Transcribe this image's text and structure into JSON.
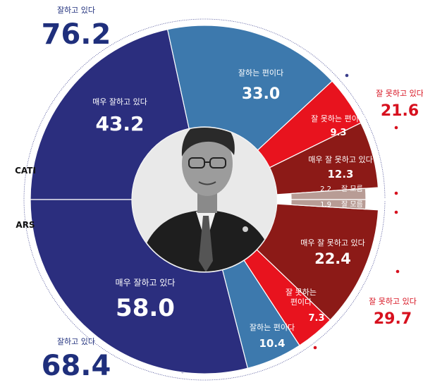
{
  "colors": {
    "strong_positive": "#2b2e7e",
    "positive": "#3d79ad",
    "negative": "#e8131e",
    "strong_negative": "#8c1a17",
    "unknown": "#b89c95",
    "guide": "#3a3e8c",
    "guide_dot_red": "#d7101e"
  },
  "portrait": {
    "icon": "person-portrait-icon"
  },
  "chart_data": {
    "type": "pie",
    "subtype": "donut-split",
    "groups": [
      {
        "name": "CATI",
        "half": "top",
        "positive_total": {
          "label": "잘하고 있다",
          "value": "76.2"
        },
        "negative_total": {
          "label": "잘 못하고 있다",
          "value": "21.6"
        },
        "segments": [
          {
            "label": "매우 잘하고 있다",
            "value": 43.2,
            "value_text": "43.2",
            "color_key": "strong_positive"
          },
          {
            "label": "잘하는 편이다",
            "value": 33.0,
            "value_text": "33.0",
            "color_key": "positive"
          },
          {
            "label": "잘 못하는 편이다",
            "value": 9.3,
            "value_text": "9.3",
            "color_key": "negative"
          },
          {
            "label": "매우 잘 못하고 있다",
            "value": 12.3,
            "value_text": "12.3",
            "color_key": "strong_negative"
          },
          {
            "label": "잘 모름",
            "value": 2.2,
            "value_text": "2.2",
            "color_key": "unknown"
          }
        ]
      },
      {
        "name": "ARS",
        "half": "bottom",
        "positive_total": {
          "label": "잘하고 있다",
          "value": "68.4"
        },
        "negative_total": {
          "label": "잘 못하고 있다",
          "value": "29.7"
        },
        "segments": [
          {
            "label": "매우 잘하고 있다",
            "value": 58.0,
            "value_text": "58.0",
            "color_key": "strong_positive"
          },
          {
            "label": "잘하는 편이다",
            "value": 10.4,
            "value_text": "10.4",
            "color_key": "positive"
          },
          {
            "label": "잘 못하는 편이다",
            "value": 7.3,
            "value_text": "7.3",
            "color_key": "negative"
          },
          {
            "label": "매우 잘 못하고 있다",
            "value": 22.4,
            "value_text": "22.4",
            "color_key": "strong_negative"
          },
          {
            "label": "잘 모름",
            "value": 1.9,
            "value_text": "1.9",
            "color_key": "unknown"
          }
        ]
      }
    ]
  }
}
